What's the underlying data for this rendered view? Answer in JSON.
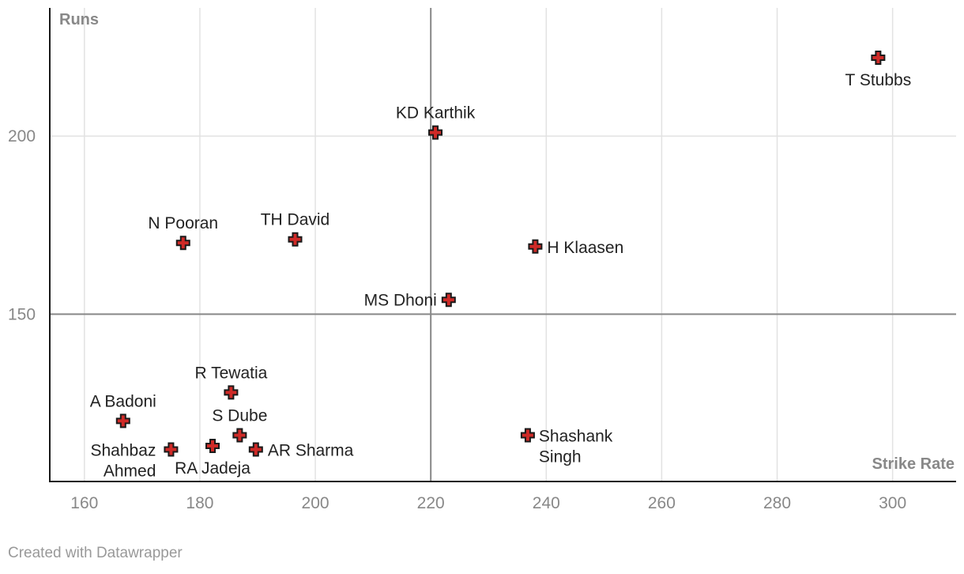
{
  "chart_data": {
    "type": "scatter",
    "xlabel": "Strike Rate",
    "ylabel": "Runs",
    "xlim": [
      154,
      311
    ],
    "ylim": [
      103,
      236
    ],
    "x_ticks": [
      160,
      180,
      200,
      220,
      240,
      260,
      280,
      300
    ],
    "y_ticks": [
      150,
      200
    ],
    "reference_lines": {
      "x": 220,
      "y": 150
    },
    "grid": true,
    "marker": "cross",
    "colors": {
      "marker": "#cf2a27",
      "marker_outline": "#1a1a1a",
      "grid": "#e2e2e2",
      "reference_line": "#888888",
      "axis": "#1a1a1a"
    },
    "points": [
      {
        "name": "T Stubbs",
        "x": 297.5,
        "y": 222,
        "label_pos": "below"
      },
      {
        "name": "KD Karthik",
        "x": 220.8,
        "y": 201,
        "label_pos": "above"
      },
      {
        "name": "N Pooran",
        "x": 177.1,
        "y": 170,
        "label_pos": "above"
      },
      {
        "name": "TH David",
        "x": 196.5,
        "y": 171,
        "label_pos": "above"
      },
      {
        "name": "H Klaasen",
        "x": 238.1,
        "y": 169,
        "label_pos": "right"
      },
      {
        "name": "MS Dhoni",
        "x": 223.1,
        "y": 154,
        "label_pos": "left"
      },
      {
        "name": "R Tewatia",
        "x": 185.4,
        "y": 128,
        "label_pos": "above"
      },
      {
        "name": "A Badoni",
        "x": 166.7,
        "y": 120,
        "label_pos": "above"
      },
      {
        "name": "S Dube",
        "x": 186.9,
        "y": 116,
        "label_pos": "above"
      },
      {
        "name": "Shahbaz Ahmed",
        "x": 175.0,
        "y": 112,
        "label_pos": "left-below",
        "lines": [
          "Shahbaz",
          "Ahmed"
        ]
      },
      {
        "name": "RA Jadeja",
        "x": 182.2,
        "y": 113,
        "label_pos": "below"
      },
      {
        "name": "AR Sharma",
        "x": 189.7,
        "y": 112,
        "label_pos": "right"
      },
      {
        "name": "Shashank Singh",
        "x": 236.8,
        "y": 116,
        "label_pos": "right-below",
        "lines": [
          "Shashank",
          "Singh"
        ]
      }
    ]
  },
  "footer": {
    "credit": "Created with Datawrapper"
  }
}
